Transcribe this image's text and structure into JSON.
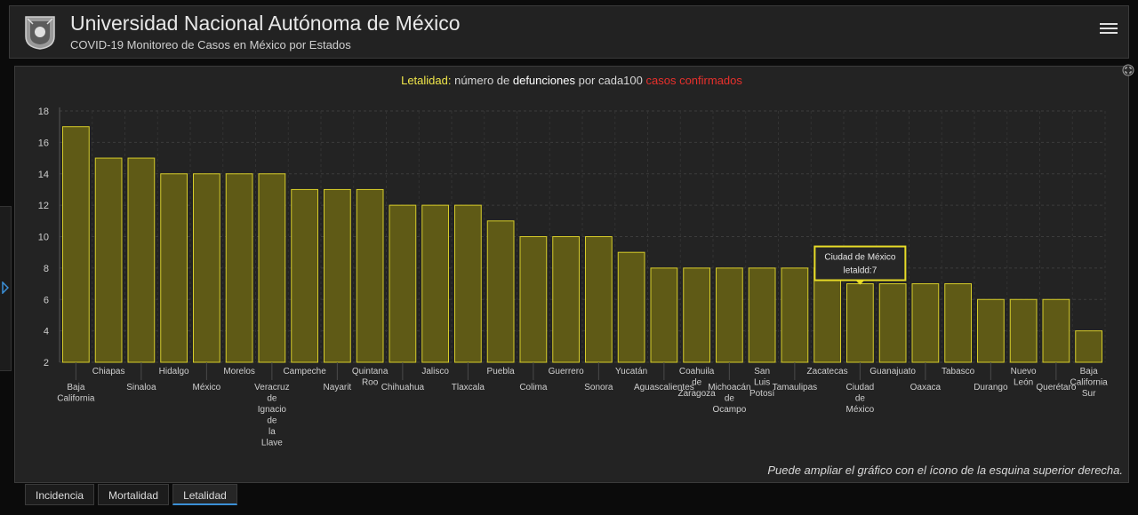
{
  "header": {
    "title": "Universidad Nacional Autónoma de México",
    "subtitle": "COVID-19 Monitoreo de Casos en México por Estados"
  },
  "chart_title": {
    "part1": "Letalidad:",
    "part2": " número de ",
    "part3": "defunciones",
    "part4": " por cada100 ",
    "part5": "casos confirmados"
  },
  "hint": "Puede ampliar el gráfico con el ícono de la esquina superior derecha.",
  "tabs": [
    {
      "label": "Incidencia",
      "active": false
    },
    {
      "label": "Mortalidad",
      "active": false
    },
    {
      "label": "Letalidad",
      "active": true
    }
  ],
  "tooltip": {
    "title": "Ciudad de México",
    "text": "letaldd:7"
  },
  "colors": {
    "bar_fill": "#5f5a16",
    "bar_stroke": "#d6cc2a",
    "title_yellow": "#f0e64a",
    "title_red": "#e8302c",
    "title_white": "#ffffff"
  },
  "chart_data": {
    "type": "bar",
    "title": "Letalidad: número de defunciones por cada100 casos confirmados",
    "categories": [
      "Baja California",
      "Chiapas",
      "Sinaloa",
      "Hidalgo",
      "México",
      "Morelos",
      "Veracruz de Ignacio de la Llave",
      "Campeche",
      "Nayarit",
      "Quintana Roo",
      "Chihuahua",
      "Jalisco",
      "Tlaxcala",
      "Puebla",
      "Colima",
      "Guerrero",
      "Sonora",
      "Yucatán",
      "Aguascalientes",
      "Coahuila de Zaragoza",
      "Michoacán de Ocampo",
      "San Luis Potosí",
      "Tamaulipas",
      "Zacatecas",
      "Ciudad de México",
      "Guanajuato",
      "Oaxaca",
      "Tabasco",
      "Durango",
      "Nuevo León",
      "Querétaro",
      "Baja California Sur"
    ],
    "label_lines": [
      [
        "Baja",
        "California"
      ],
      [
        "Chiapas"
      ],
      [
        "Sinaloa"
      ],
      [
        "Hidalgo"
      ],
      [
        "México"
      ],
      [
        "Morelos"
      ],
      [
        "Veracruz",
        "de",
        "Ignacio",
        "de",
        "la",
        "Llave"
      ],
      [
        "Campeche"
      ],
      [
        "Nayarit"
      ],
      [
        "Quintana",
        "Roo"
      ],
      [
        "Chihuahua"
      ],
      [
        "Jalisco"
      ],
      [
        "Tlaxcala"
      ],
      [
        "Puebla"
      ],
      [
        "Colima"
      ],
      [
        "Guerrero"
      ],
      [
        "Sonora"
      ],
      [
        "Yucatán"
      ],
      [
        "Aguascalientes"
      ],
      [
        "Coahuila",
        "de",
        "Zaragoza"
      ],
      [
        "Michoacán",
        "de",
        "Ocampo"
      ],
      [
        "San",
        "Luis",
        "Potosí"
      ],
      [
        "Tamaulipas"
      ],
      [
        "Zacatecas"
      ],
      [
        "Ciudad",
        "de",
        "México"
      ],
      [
        "Guanajuato"
      ],
      [
        "Oaxaca"
      ],
      [
        "Tabasco"
      ],
      [
        "Durango"
      ],
      [
        "Nuevo",
        "León"
      ],
      [
        "Querétaro"
      ],
      [
        "Baja",
        "California",
        "Sur"
      ]
    ],
    "values": [
      17,
      15,
      15,
      14,
      14,
      14,
      14,
      13,
      13,
      13,
      12,
      12,
      12,
      11,
      10,
      10,
      10,
      9,
      8,
      8,
      8,
      8,
      8,
      8,
      7,
      7,
      7,
      7,
      6,
      6,
      6,
      4
    ],
    "yticks": [
      2,
      4,
      6,
      8,
      10,
      12,
      14,
      16,
      18
    ],
    "ylim": [
      2,
      18
    ],
    "grid": true
  }
}
